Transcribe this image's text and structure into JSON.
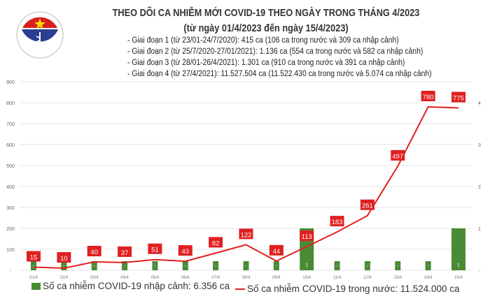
{
  "header": {
    "logo_text": "BỘ Y TẾ · MINISTRY OF HEALTH",
    "title": "THEO DÕI CA NHIỄM MỚI COVID-19 THEO NGÀY TRONG THÁNG 4/2023",
    "subtitle": "(từ ngày 01/4/2023 đến ngày 15/4/2023)",
    "phases": [
      "- Giai đoạn 1 (từ 23/01-24/7/2020): 415 ca (106 ca trong nước và 309 ca nhập cảnh)",
      "- Giai đoạn 2 (từ 25/7/2020-27/01/2021): 1.136 ca (554 ca trong nước và 582 ca nhập cảnh)",
      "- Giai đoạn 3 (từ 28/01-26/4/2021): 1.301 ca (910 ca trong nước và 391 ca nhập cảnh)",
      "- Giai đoạn 4 (từ 27/4/2021): 11.527.504 ca (11.522.430 ca trong nước và 5.074 ca nhập cảnh)"
    ]
  },
  "chart_data": {
    "type": "bar+line",
    "categories": [
      "01/4",
      "02/4",
      "03/4",
      "04/4",
      "05/4",
      "06/4",
      "07/4",
      "08/4",
      "09/4",
      "10/4",
      "11/4",
      "12/4",
      "13/4",
      "14/4",
      "15/4"
    ],
    "series": [
      {
        "name": "Số ca nhiễm COVID-19 nhập cảnh: 6.356 ca",
        "type": "bar",
        "axis": "right",
        "color": "#4a8a35",
        "values": [
          0,
          0,
          0,
          0,
          0,
          0,
          0,
          0,
          0,
          1,
          0,
          0,
          0,
          0,
          1
        ],
        "labels": [
          "-",
          "-",
          "-",
          "-",
          "-",
          "-",
          "-",
          "-",
          "-",
          "1",
          "-",
          "-",
          "-",
          "-",
          "1"
        ]
      },
      {
        "name": "Số ca nhiễm COVID-19 trong nước: 11.524.000 ca",
        "type": "line",
        "axis": "left",
        "color": "#e02020",
        "values": [
          15,
          10,
          40,
          37,
          51,
          43,
          82,
          122,
          44,
          113,
          183,
          261,
          497,
          780,
          775
        ]
      }
    ],
    "left_axis": {
      "ylim": [
        0,
        900
      ],
      "ticks": [
        "-",
        "100",
        "200",
        "300",
        "400",
        "500",
        "600",
        "700",
        "800",
        "900"
      ]
    },
    "right_axis": {
      "ylim": [
        0,
        4
      ],
      "ticks": [
        "-",
        "1",
        "2",
        "3",
        "4"
      ]
    },
    "grid": true,
    "legend": "bottom"
  }
}
